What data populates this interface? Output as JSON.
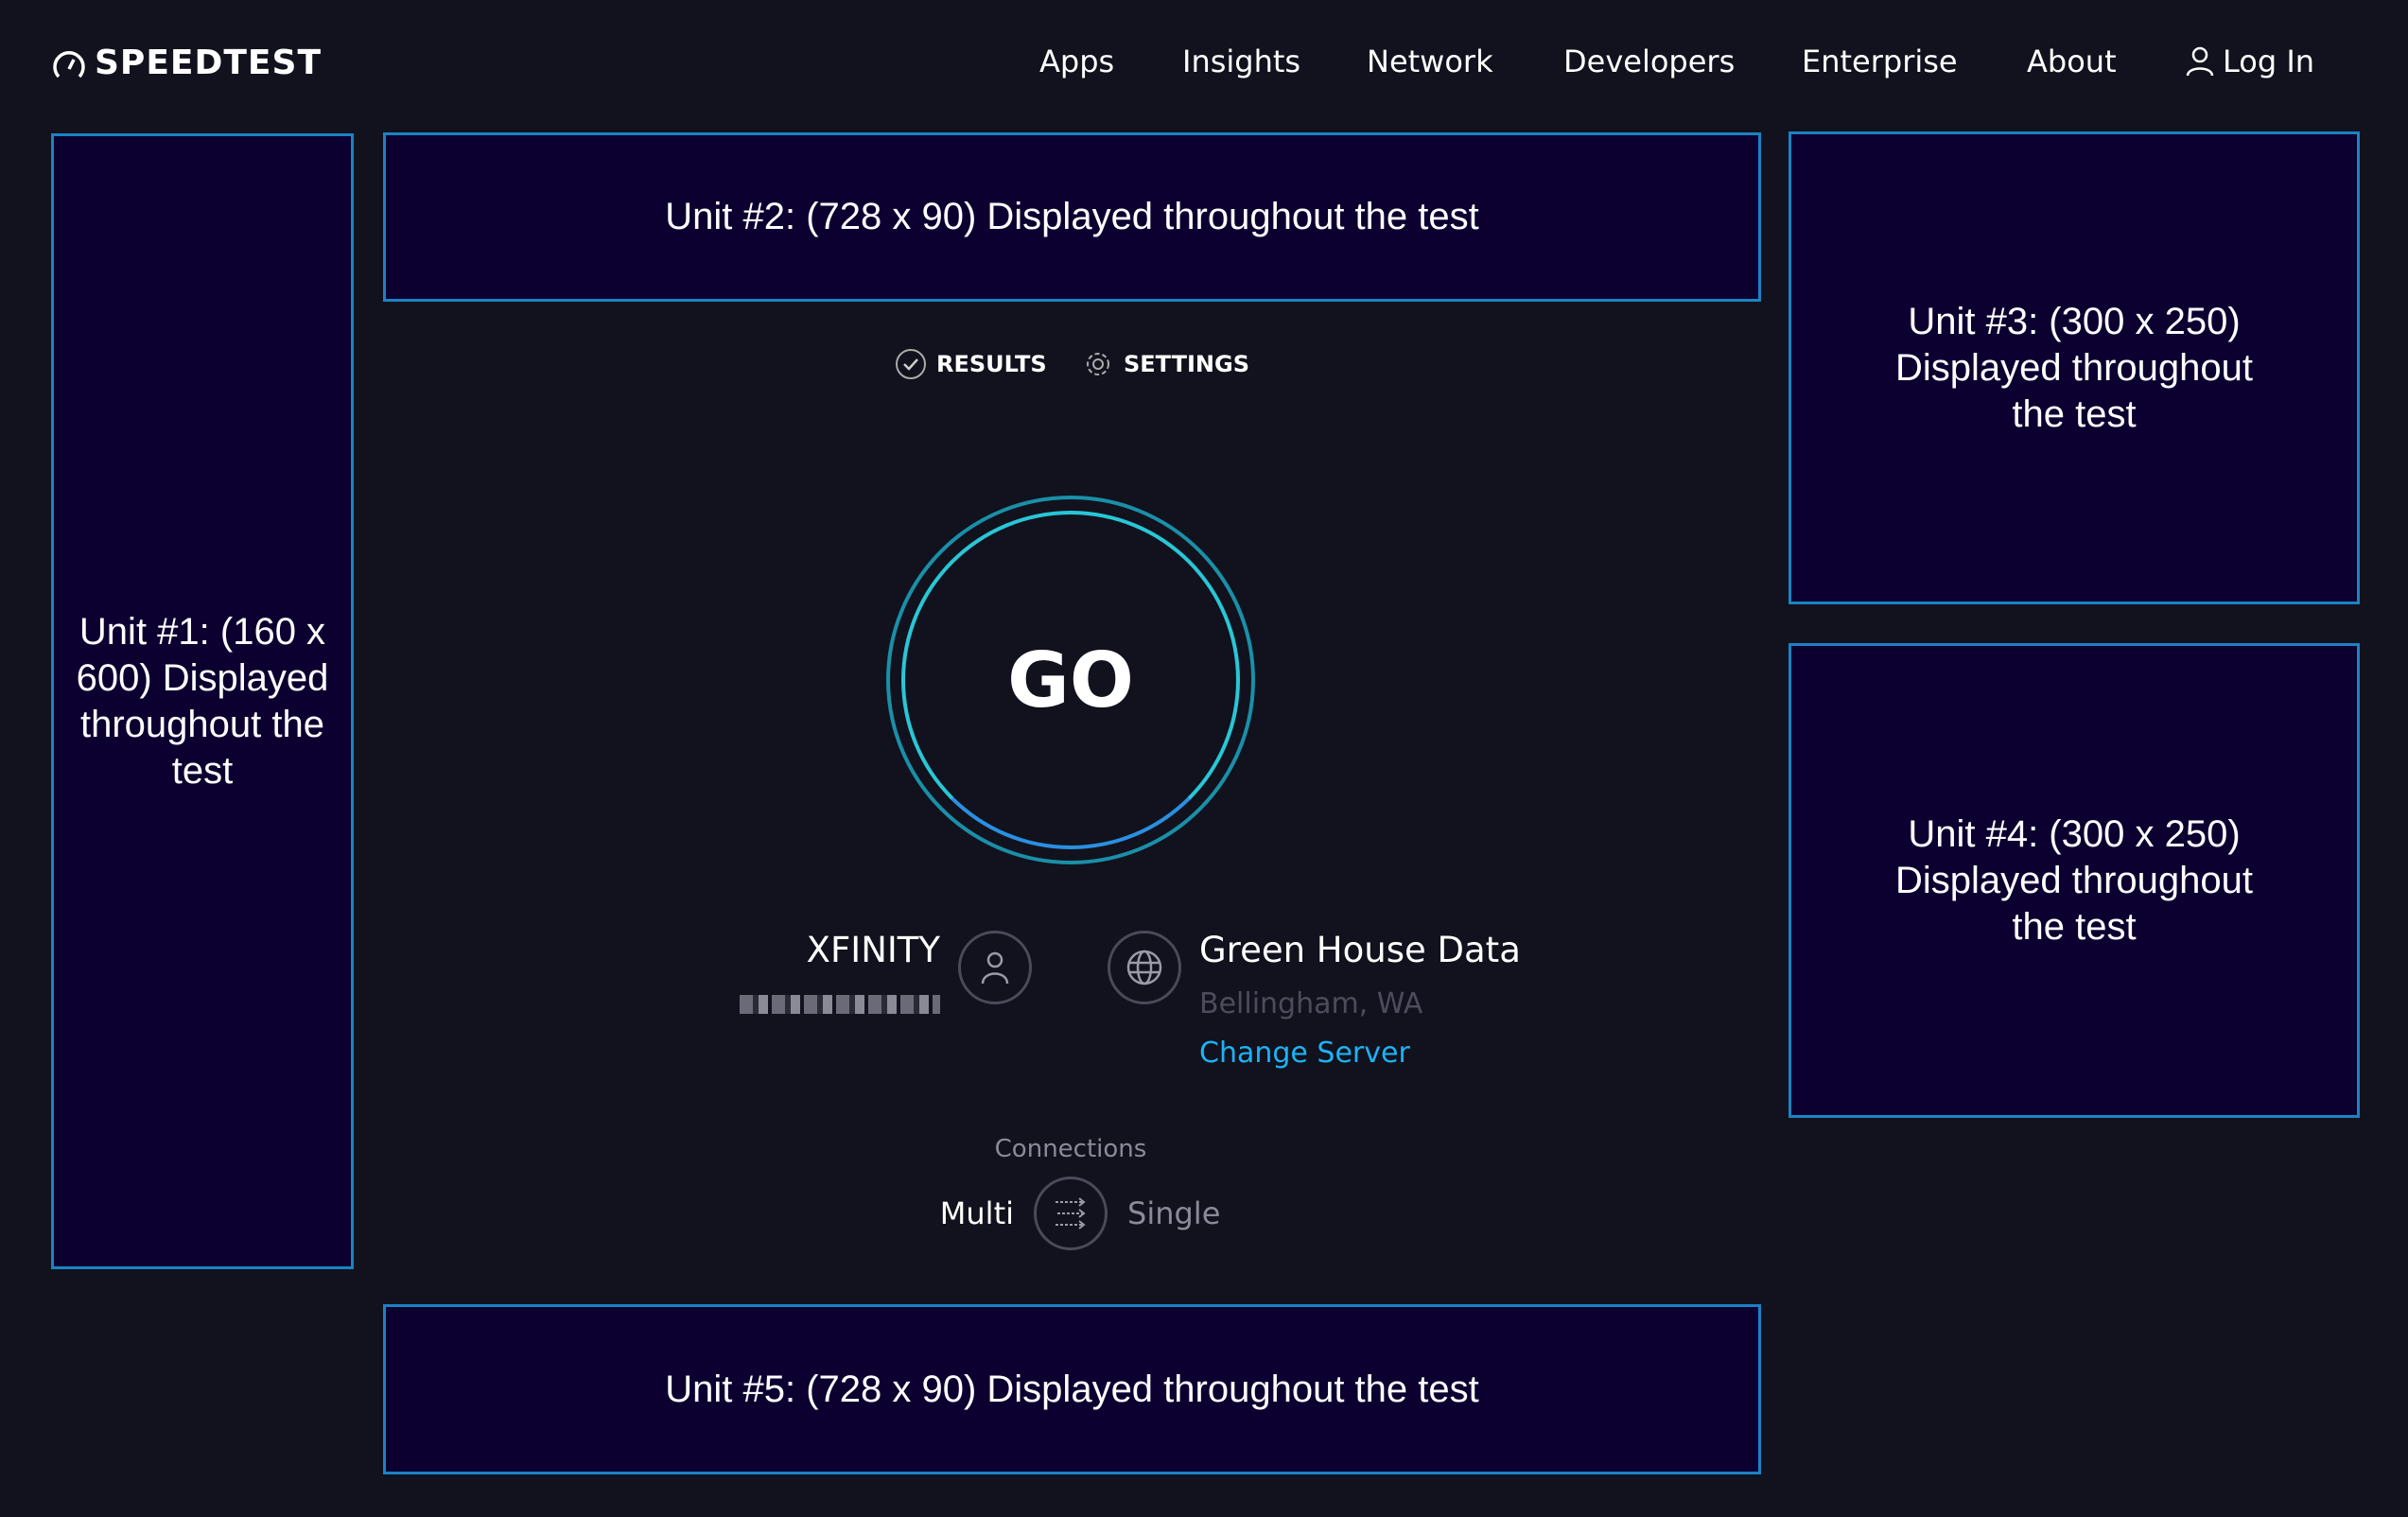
{
  "header": {
    "logo_text": "SPEEDTEST",
    "nav": [
      "Apps",
      "Insights",
      "Network",
      "Developers",
      "Enterprise",
      "About"
    ],
    "login_label": "Log In"
  },
  "ads": {
    "unit1": "Unit #1: (160 x 600) Displayed throughout the test",
    "unit2": "Unit #2: (728 x 90) Displayed throughout the test",
    "unit3": "Unit #3: (300 x 250) Displayed throughout the test",
    "unit4": "Unit #4: (300 x 250) Displayed throughout the test",
    "unit5": "Unit #5: (728 x 90) Displayed throughout the test"
  },
  "tabs": {
    "results": "RESULTS",
    "settings": "SETTINGS"
  },
  "go_label": "GO",
  "isp": {
    "name": "XFINITY"
  },
  "server": {
    "name": "Green House Data",
    "location": "Bellingham, WA",
    "change_label": "Change Server"
  },
  "connections": {
    "label": "Connections",
    "multi": "Multi",
    "single": "Single",
    "selected": "Multi"
  },
  "colors": {
    "background": "#11121d",
    "ad_bg": "#0c0030",
    "ad_border": "#1b82c4",
    "link": "#1cb3f5",
    "ring_outer": "#1a8fa8",
    "ring_inner": "#2bd0d0"
  }
}
